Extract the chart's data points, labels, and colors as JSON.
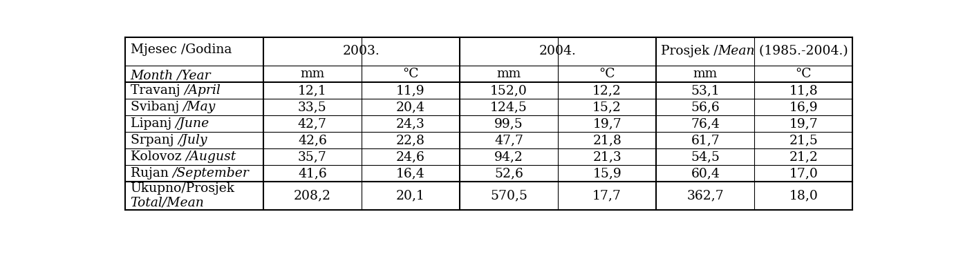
{
  "rows": [
    [
      "Travanj",
      "/April",
      "12,1",
      "11,9",
      "152,0",
      "12,2",
      "53,1",
      "11,8"
    ],
    [
      "Svibanj",
      "/May",
      "33,5",
      "20,4",
      "124,5",
      "15,2",
      "56,6",
      "16,9"
    ],
    [
      "Lipanj",
      "/June",
      "42,7",
      "24,3",
      "99,5",
      "19,7",
      "76,4",
      "19,7"
    ],
    [
      "Srpanj",
      "/July",
      "42,6",
      "22,8",
      "47,7",
      "21,8",
      "61,7",
      "21,5"
    ],
    [
      "Kolovoz",
      "/August",
      "35,7",
      "24,6",
      "94,2",
      "21,3",
      "54,5",
      "21,2"
    ],
    [
      "Rujan",
      "/September",
      "41,6",
      "16,4",
      "52,6",
      "15,9",
      "60,4",
      "17,0"
    ]
  ],
  "footer_line1_normal": "Ukupno/Prosjek",
  "footer_line2_italic": "Total/Mean",
  "footer_vals": [
    "208,2",
    "20,1",
    "570,5",
    "17,7",
    "362,7",
    "18,0"
  ],
  "header_normal_line1": "Mjesec /Godina",
  "header_italic_line2": "Month /Year",
  "year_2003": "2003.",
  "year_2004": "2004.",
  "prosjek_normal1": "Prosjek /",
  "prosjek_italic": "Mean",
  "prosjek_normal2": " (1985.-2004.)",
  "subheaders": [
    "mm",
    "°C",
    "mm",
    "°C",
    "mm",
    "°C"
  ],
  "bg_color": "#ffffff",
  "text_color": "#000000",
  "font_size": 13.5,
  "font_family": "DejaVu Serif"
}
